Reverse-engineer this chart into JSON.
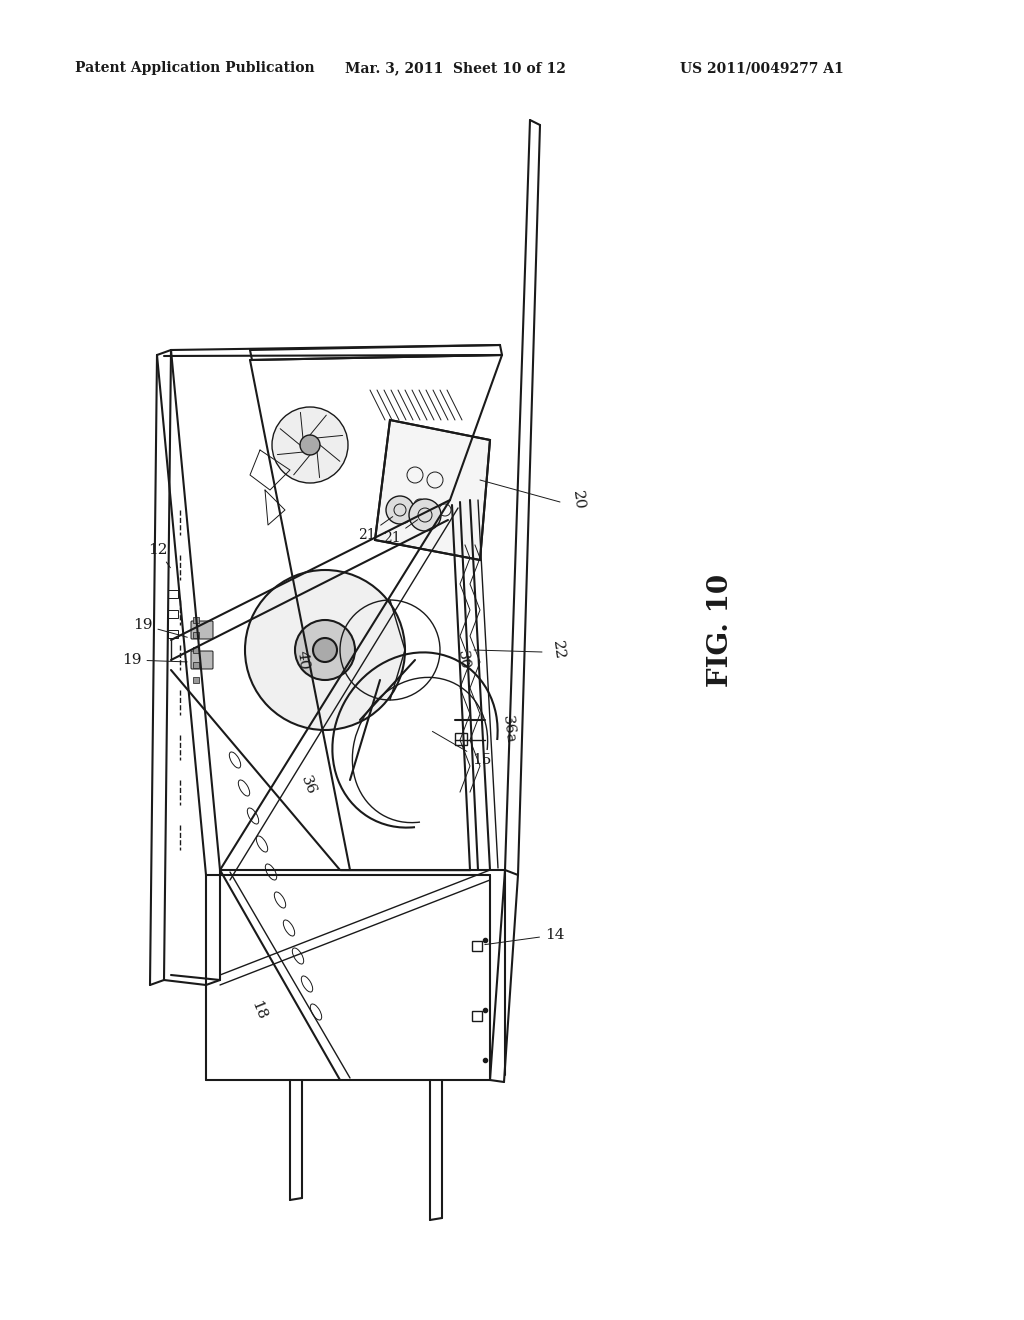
{
  "bg_color": "#ffffff",
  "line_color": "#1a1a1a",
  "header_left": "Patent Application Publication",
  "header_mid": "Mar. 3, 2011  Sheet 10 of 12",
  "header_right": "US 2011/0049277 A1",
  "fig_label": "FIG. 10",
  "fig_w": 1024,
  "fig_h": 1320
}
